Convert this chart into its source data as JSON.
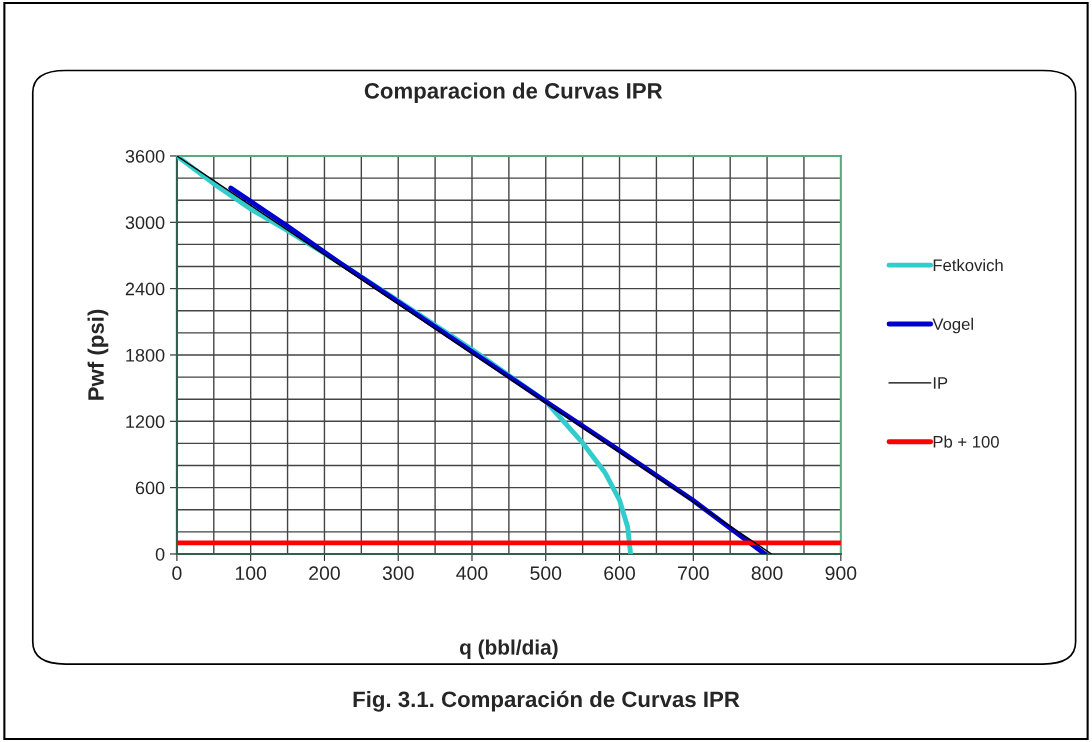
{
  "chart_data": {
    "type": "line",
    "title": "Comparacion de Curvas IPR",
    "xlabel": "q (bbl/dia)",
    "ylabel": "Pwf (psi)",
    "annotations": [
      "Fig. 3.1. Comparación de Curvas IPR"
    ],
    "series": [
      {
        "name": "Fetkovich",
        "color": "#33cccc",
        "x": [
          0,
          49,
          100,
          149,
          221,
          300,
          401,
          450,
          501,
          550,
          580,
          600,
          611,
          615
        ],
        "values": [
          3600,
          3354,
          3120,
          2929,
          2631,
          2290,
          1845,
          1615,
          1374,
          1004,
          740,
          488,
          244,
          0
        ]
      },
      {
        "name": "Vogel",
        "color": "#0000cc",
        "x": [
          73,
          150,
          221,
          300,
          400,
          501,
          600,
          699,
          797
        ],
        "values": [
          3309,
          2965,
          2631,
          2280,
          1830,
          1374,
          935,
          488,
          0
        ]
      },
      {
        "name": "IP",
        "color": "#000000",
        "x": [
          0,
          806
        ],
        "values": [
          3600,
          0
        ]
      },
      {
        "name": "Pb + 100",
        "color": "#ff0000",
        "x": [
          0,
          900
        ],
        "values": [
          100,
          100
        ]
      }
    ],
    "xlim": [
      0,
      900
    ],
    "ylim": [
      0,
      3600
    ],
    "xticks": [
      0,
      {
        "value": 50,
        "label": null
      },
      100,
      {
        "value": 150,
        "label": null
      },
      200,
      {
        "value": 250,
        "label": null
      },
      300,
      {
        "value": 350,
        "label": null
      },
      400,
      {
        "value": 450,
        "label": null
      },
      500,
      {
        "value": 550,
        "label": null
      },
      600,
      {
        "value": 650,
        "label": null
      },
      700,
      {
        "value": 750,
        "label": null
      },
      800,
      {
        "value": 850,
        "label": null
      },
      900
    ],
    "yticks": [
      0,
      {
        "value": 200,
        "label": null
      },
      {
        "value": 400,
        "label": null
      },
      600,
      {
        "value": 800,
        "label": null
      },
      {
        "value": 1000,
        "label": null
      },
      1200,
      {
        "value": 1400,
        "label": null
      },
      {
        "value": 1600,
        "label": null
      },
      1800,
      {
        "value": 2000,
        "label": null
      },
      {
        "value": 2200,
        "label": null
      },
      2400,
      {
        "value": 2600,
        "label": null
      },
      {
        "value": 2800,
        "label": null
      },
      3000,
      {
        "value": 3200,
        "label": null
      },
      {
        "value": 3400,
        "label": null
      },
      3600
    ],
    "grid": true,
    "legend": "right",
    "marker": "none",
    "line_style": "solid"
  }
}
